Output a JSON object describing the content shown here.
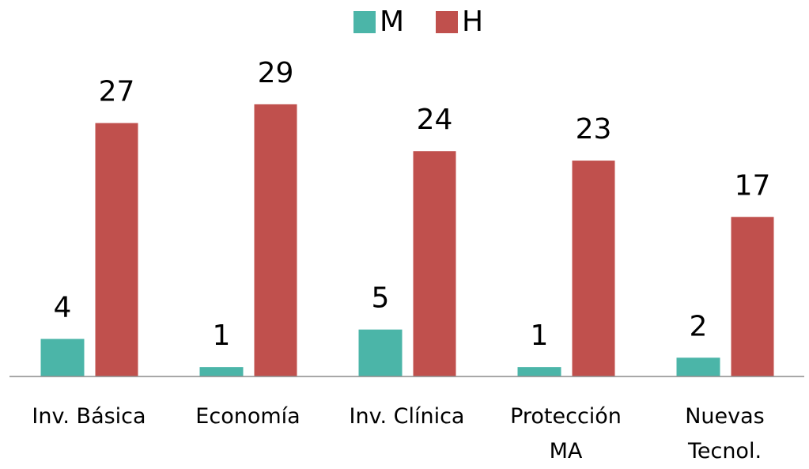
{
  "chart_data": {
    "type": "bar",
    "categories": [
      "Inv. Básica",
      "Economía",
      "Inv. Clínica",
      "Protección MA",
      "Nuevas Tecnol."
    ],
    "series": [
      {
        "name": "M",
        "color": "#4bb5a8",
        "values": [
          4,
          1,
          5,
          1,
          2
        ]
      },
      {
        "name": "H",
        "color": "#c0504d",
        "values": [
          27,
          29,
          24,
          23,
          17
        ]
      }
    ],
    "ylim": [
      0,
      30
    ],
    "legend": "top"
  }
}
